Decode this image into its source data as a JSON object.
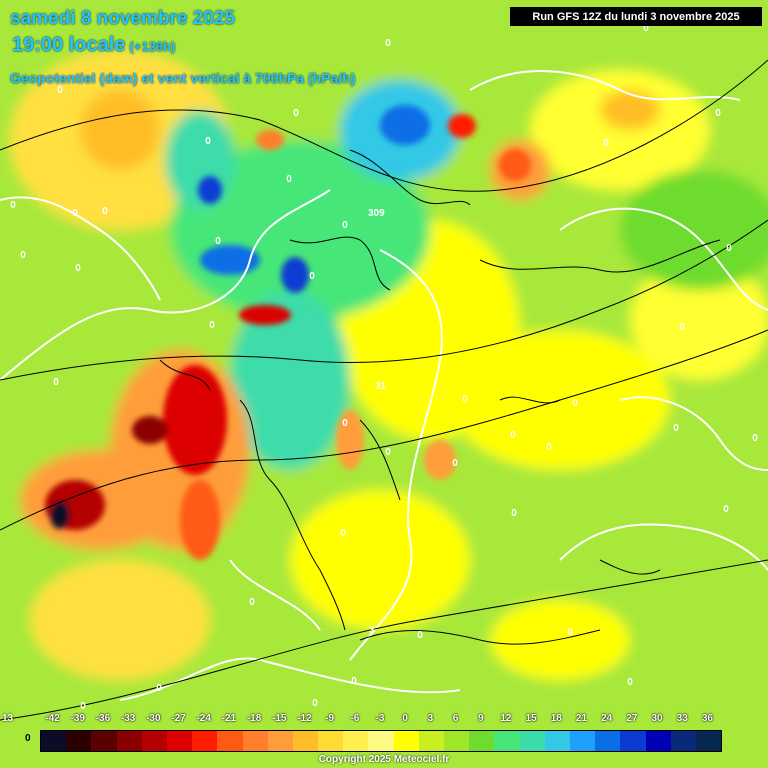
{
  "header": {
    "date": "samedi 8 novembre 2025",
    "time": "19:00 locale",
    "lead": "(+126h)",
    "parameter": "Geopotentiel (dam) et vent vertical à 700hPa (hPa/h)"
  },
  "run_label": "Run GFS 12Z du lundi 3 novembre 2025",
  "copyright": "Copyright 2025 Meteociel.fr",
  "legend": {
    "left_zero": "0",
    "left_value": "13",
    "labels": [
      "-42",
      "-39",
      "-36",
      "-33",
      "-30",
      "-27",
      "-24",
      "-21",
      "-18",
      "-15",
      "-12",
      "-9",
      "-6",
      "-3",
      "0",
      "3",
      "6",
      "9",
      "12",
      "15",
      "18",
      "21",
      "24",
      "27",
      "30",
      "33",
      "36"
    ],
    "colors": [
      "#0c0c28",
      "#2a0000",
      "#5a0000",
      "#8a0000",
      "#b40000",
      "#dc0000",
      "#ff1e00",
      "#ff5a14",
      "#ff7f2a",
      "#ff9d3a",
      "#ffbe28",
      "#ffdc32",
      "#fff050",
      "#fffa82",
      "#ffff00",
      "#c8f020",
      "#a0e628",
      "#6edc2d",
      "#46e678",
      "#3cdcaa",
      "#32c8e6",
      "#1ea0ff",
      "#0a6ee6",
      "#0a3cd2",
      "#0000b4",
      "#082a78",
      "#062850"
    ]
  },
  "map": {
    "geopotential_labels": [
      "309",
      "31",
      "3"
    ],
    "zero_label": "0"
  }
}
